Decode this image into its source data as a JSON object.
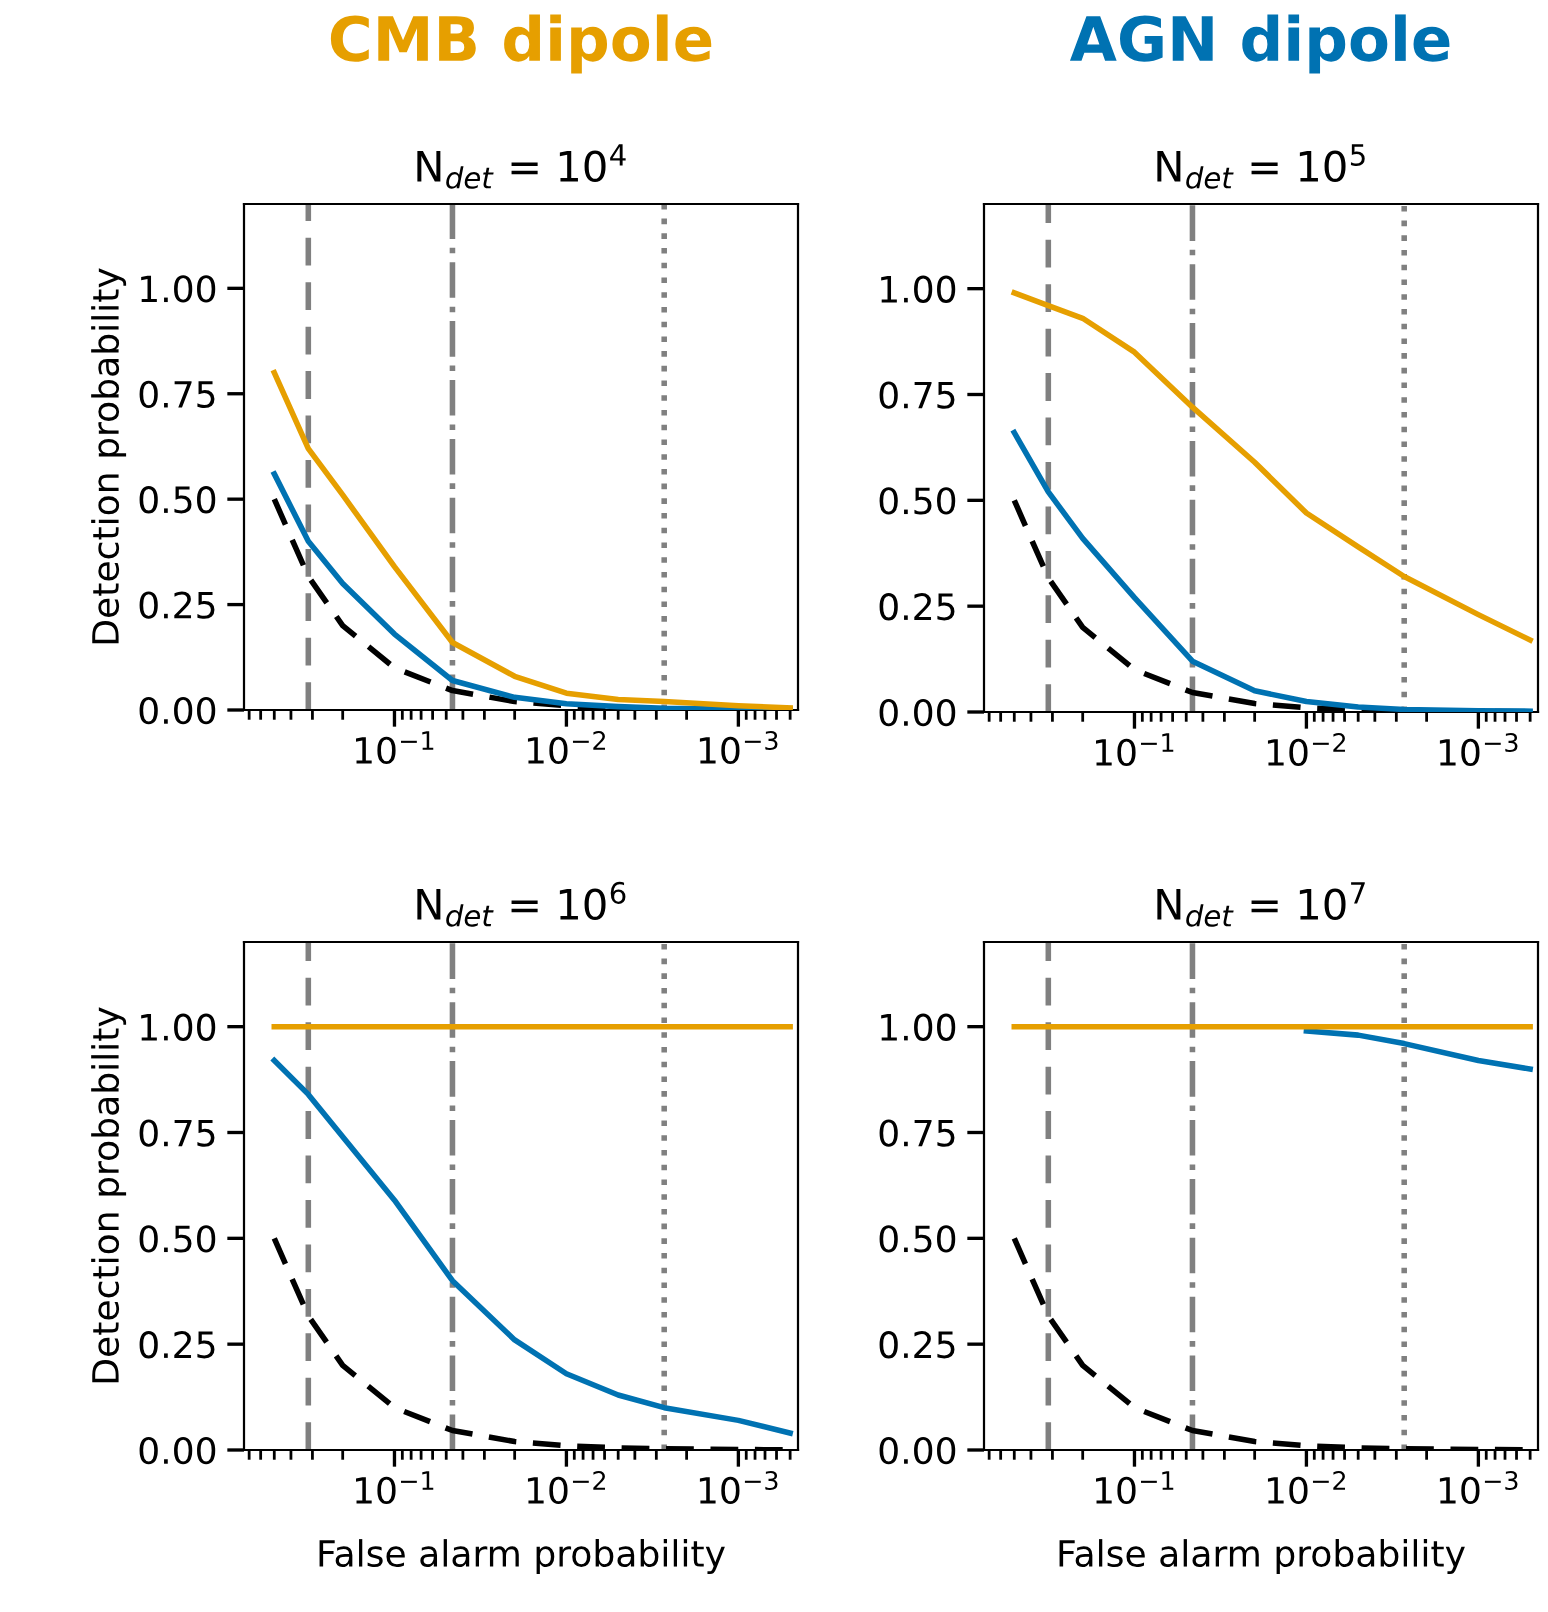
{
  "chart_data": [
    {
      "type": "line",
      "title": "N$_{det}$ = 10$^{4}$",
      "ylabel": "Detection probability",
      "annotations": [
        "CMB dipole"
      ],
      "log": "x",
      "x": [
        0.5,
        0.317,
        0.2,
        0.1,
        0.046,
        0.02,
        0.01,
        0.005,
        0.0027,
        0.001,
        0.0005
      ],
      "series": [
        {
          "color": "#e69f00",
          "values": [
            0.8,
            0.62,
            0.51,
            0.34,
            0.16,
            0.08,
            0.04,
            0.025,
            0.02,
            0.01,
            0.005
          ]
        },
        {
          "color": "#0072b2",
          "values": [
            0.56,
            0.4,
            0.3,
            0.18,
            0.07,
            0.03,
            0.015,
            0.008,
            0.004,
            0.002,
            0.001
          ]
        },
        {
          "color": "#000000",
          "line_style": "dashed",
          "values": [
            0.5,
            0.317,
            0.2,
            0.1,
            0.046,
            0.02,
            0.01,
            0.005,
            0.0027,
            0.001,
            0.0005
          ]
        }
      ],
      "ref_lines": [
        {
          "axis": "x",
          "value": 0.317,
          "color": "#808080",
          "line_style": "dashed"
        },
        {
          "axis": "x",
          "value": 0.046,
          "color": "#808080",
          "line_style": "dashdot"
        },
        {
          "axis": "x",
          "value": 0.0027,
          "color": "#808080",
          "line_style": "dotted"
        }
      ],
      "xlim": [
        0.75,
        0.00045
      ],
      "ylim": [
        0,
        1.2
      ],
      "xticks": [
        {
          "value": 0.1,
          "label": "10$^{−1}$"
        },
        {
          "value": 0.01,
          "label": "10$^{−2}$"
        },
        {
          "value": 0.001,
          "label": "10$^{−3}$"
        }
      ],
      "yticks": [
        {
          "value": 0,
          "label": "0.00"
        },
        {
          "value": 0.25,
          "label": "0.25"
        },
        {
          "value": 0.5,
          "label": "0.50"
        },
        {
          "value": 0.75,
          "label": "0.75"
        },
        {
          "value": 1,
          "label": "1.00"
        }
      ]
    },
    {
      "type": "line",
      "title": "N$_{det}$ = 10$^{5}$",
      "annotations": [
        "AGN dipole"
      ],
      "log": "x",
      "x": [
        0.5,
        0.317,
        0.2,
        0.1,
        0.046,
        0.02,
        0.01,
        0.005,
        0.0027,
        0.001,
        0.0005
      ],
      "series": [
        {
          "color": "#e69f00",
          "values": [
            0.99,
            0.96,
            0.93,
            0.85,
            0.72,
            0.59,
            0.47,
            0.39,
            0.32,
            0.23,
            0.17
          ]
        },
        {
          "color": "#0072b2",
          "values": [
            0.66,
            0.52,
            0.41,
            0.27,
            0.12,
            0.05,
            0.025,
            0.012,
            0.006,
            0.003,
            0.002
          ]
        },
        {
          "color": "#000000",
          "line_style": "dashed",
          "values": [
            0.5,
            0.317,
            0.2,
            0.1,
            0.046,
            0.02,
            0.01,
            0.005,
            0.0027,
            0.001,
            0.0005
          ]
        }
      ],
      "ref_lines": [
        {
          "axis": "x",
          "value": 0.317,
          "color": "#808080",
          "line_style": "dashed"
        },
        {
          "axis": "x",
          "value": 0.046,
          "color": "#808080",
          "line_style": "dashdot"
        },
        {
          "axis": "x",
          "value": 0.0027,
          "color": "#808080",
          "line_style": "dotted"
        }
      ],
      "xlim": [
        0.75,
        0.00045
      ],
      "ylim": [
        0,
        1.2
      ],
      "xticks": [
        {
          "value": 0.1,
          "label": "10$^{−1}$"
        },
        {
          "value": 0.01,
          "label": "10$^{−2}$"
        },
        {
          "value": 0.001,
          "label": "10$^{−3}$"
        }
      ],
      "yticks": [
        {
          "value": 0,
          "label": "0.00"
        },
        {
          "value": 0.25,
          "label": "0.25"
        },
        {
          "value": 0.5,
          "label": "0.50"
        },
        {
          "value": 0.75,
          "label": "0.75"
        },
        {
          "value": 1,
          "label": "1.00"
        }
      ]
    },
    {
      "type": "line",
      "title": "N$_{det}$ = 10$^{6}$",
      "xlabel": "False alarm probability",
      "ylabel": "Detection probability",
      "log": "x",
      "x": [
        0.5,
        0.317,
        0.2,
        0.1,
        0.046,
        0.02,
        0.01,
        0.005,
        0.0027,
        0.001,
        0.0005
      ],
      "series": [
        {
          "color": "#e69f00",
          "values": [
            1,
            1,
            1,
            1,
            1,
            1,
            1,
            1,
            1,
            1,
            1
          ]
        },
        {
          "color": "#0072b2",
          "values": [
            0.92,
            0.84,
            0.74,
            0.59,
            0.4,
            0.26,
            0.18,
            0.13,
            0.1,
            0.07,
            0.04
          ]
        },
        {
          "color": "#000000",
          "line_style": "dashed",
          "values": [
            0.5,
            0.317,
            0.2,
            0.1,
            0.046,
            0.02,
            0.01,
            0.005,
            0.0027,
            0.001,
            0.0005
          ]
        }
      ],
      "ref_lines": [
        {
          "axis": "x",
          "value": 0.317,
          "color": "#808080",
          "line_style": "dashed"
        },
        {
          "axis": "x",
          "value": 0.046,
          "color": "#808080",
          "line_style": "dashdot"
        },
        {
          "axis": "x",
          "value": 0.0027,
          "color": "#808080",
          "line_style": "dotted"
        }
      ],
      "xlim": [
        0.75,
        0.00045
      ],
      "ylim": [
        0,
        1.2
      ],
      "xticks": [
        {
          "value": 0.1,
          "label": "10$^{−1}$"
        },
        {
          "value": 0.01,
          "label": "10$^{−2}$"
        },
        {
          "value": 0.001,
          "label": "10$^{−3}$"
        }
      ],
      "yticks": [
        {
          "value": 0,
          "label": "0.00"
        },
        {
          "value": 0.25,
          "label": "0.25"
        },
        {
          "value": 0.5,
          "label": "0.50"
        },
        {
          "value": 0.75,
          "label": "0.75"
        },
        {
          "value": 1,
          "label": "1.00"
        }
      ]
    },
    {
      "type": "line",
      "title": "N$_{det}$ = 10$^{7}$",
      "xlabel": "False alarm probability",
      "log": "x",
      "x": [
        0.5,
        0.317,
        0.2,
        0.1,
        0.046,
        0.02,
        0.01,
        0.005,
        0.0027,
        0.001,
        0.0005
      ],
      "series": [
        {
          "color": "#e69f00",
          "values": [
            1,
            1,
            1,
            1,
            1,
            1,
            1,
            1,
            1,
            1,
            1
          ]
        },
        {
          "color": "#0072b2",
          "values": [
            null,
            null,
            null,
            null,
            null,
            null,
            0.99,
            0.98,
            0.96,
            0.92,
            0.9
          ]
        },
        {
          "color": "#000000",
          "line_style": "dashed",
          "values": [
            0.5,
            0.317,
            0.2,
            0.1,
            0.046,
            0.02,
            0.01,
            0.005,
            0.0027,
            0.001,
            0.0005
          ]
        }
      ],
      "ref_lines": [
        {
          "axis": "x",
          "value": 0.317,
          "color": "#808080",
          "line_style": "dashed"
        },
        {
          "axis": "x",
          "value": 0.046,
          "color": "#808080",
          "line_style": "dashdot"
        },
        {
          "axis": "x",
          "value": 0.0027,
          "color": "#808080",
          "line_style": "dotted"
        }
      ],
      "xlim": [
        0.75,
        0.00045
      ],
      "ylim": [
        0,
        1.2
      ],
      "xticks": [
        {
          "value": 0.1,
          "label": "10$^{−1}$"
        },
        {
          "value": 0.01,
          "label": "10$^{−2}$"
        },
        {
          "value": 0.001,
          "label": "10$^{−3}$"
        }
      ],
      "yticks": [
        {
          "value": 0,
          "label": "0.00"
        },
        {
          "value": 0.25,
          "label": "0.25"
        },
        {
          "value": 0.5,
          "label": "0.50"
        },
        {
          "value": 0.75,
          "label": "0.75"
        },
        {
          "value": 1,
          "label": "1.00"
        }
      ]
    }
  ]
}
